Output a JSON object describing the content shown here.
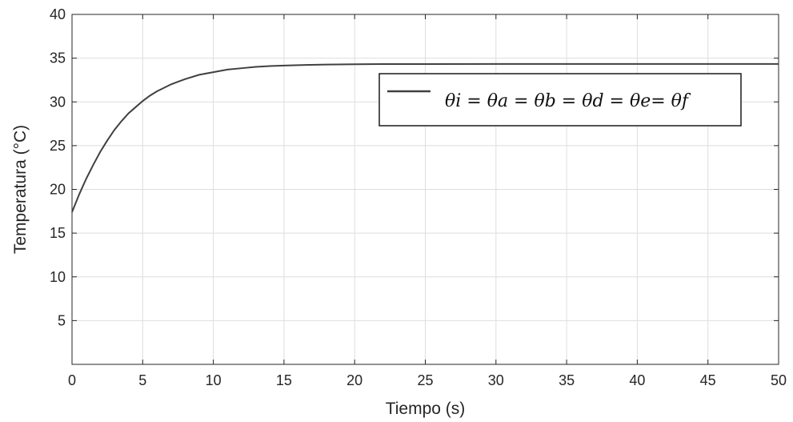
{
  "chart_data": {
    "type": "line",
    "title": "",
    "xlabel": "Tiempo (s)",
    "ylabel": "Temperatura (°C)",
    "xlim": [
      0,
      50
    ],
    "ylim": [
      0,
      40
    ],
    "xticks": [
      0,
      5,
      10,
      15,
      20,
      25,
      30,
      35,
      40,
      45,
      50
    ],
    "yticks": [
      5,
      10,
      15,
      20,
      25,
      30,
      35,
      40
    ],
    "grid": true,
    "legend_position": "top-right",
    "series": [
      {
        "name": "θi = θa = θb = θd = θe= θf",
        "color": "#404040",
        "x": [
          0,
          0.5,
          1,
          1.5,
          2,
          2.5,
          3,
          3.5,
          4,
          4.5,
          5,
          5.5,
          6,
          6.5,
          7,
          7.5,
          8,
          9,
          10,
          11,
          12,
          13,
          14,
          15,
          16,
          18,
          20,
          22,
          25,
          30,
          35,
          40,
          45,
          50
        ],
        "y": [
          17.4,
          19.4,
          21.2,
          22.8,
          24.3,
          25.6,
          26.8,
          27.8,
          28.7,
          29.4,
          30.1,
          30.7,
          31.2,
          31.6,
          32.0,
          32.3,
          32.6,
          33.1,
          33.4,
          33.7,
          33.85,
          34.0,
          34.1,
          34.15,
          34.2,
          34.27,
          34.3,
          34.32,
          34.33,
          34.34,
          34.34,
          34.34,
          34.34,
          34.34
        ]
      }
    ]
  }
}
